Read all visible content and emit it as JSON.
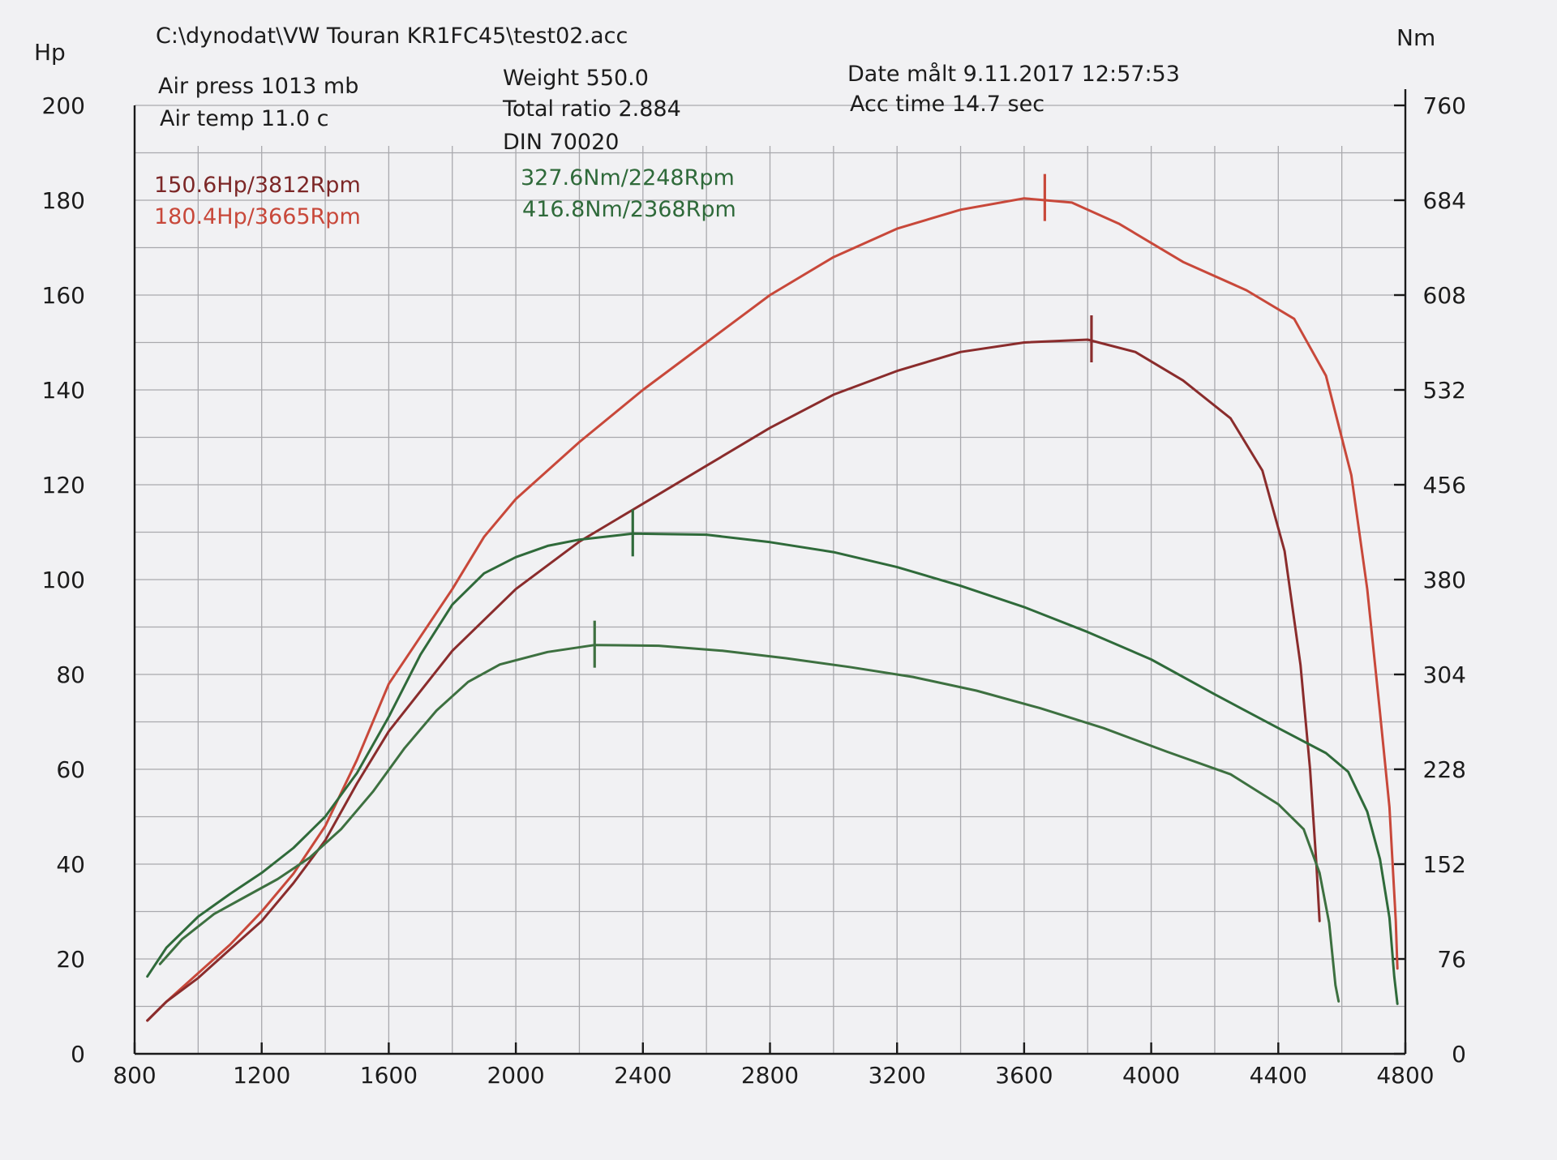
{
  "header": {
    "file_path": "C:\\dynodat\\VW Touran KR1FC45\\test02.acc",
    "air_press": "Air press  1013 mb",
    "air_temp": "Air temp   11.0 c",
    "weight": "Weight    550.0",
    "total_ratio": "Total ratio 2.884",
    "din": "DIN 70020",
    "date": "Date målt 9.11.2017 12:57:53",
    "acc_time": "Acc time   14.7 sec"
  },
  "axis_units": {
    "left": "Hp",
    "right": "Nm"
  },
  "colors": {
    "power_tuned": "#c8483a",
    "power_stock": "#8a2c2c",
    "torque_tuned": "#2f6a3a",
    "torque_stock": "#3d7040",
    "grid": "#a9a9ad"
  },
  "chart_data": {
    "type": "line",
    "x_label_unit": "Rpm",
    "xlim": [
      800,
      4800
    ],
    "x_ticks": [
      "800",
      "1200",
      "1600",
      "2000",
      "2400",
      "2800",
      "3200",
      "3600",
      "4000",
      "4400",
      "4800"
    ],
    "ylim_left": [
      0,
      200
    ],
    "y_ticks_left": [
      "0",
      "20",
      "40",
      "60",
      "80",
      "100",
      "120",
      "140",
      "160",
      "180",
      "200"
    ],
    "ylim_right": [
      0,
      760
    ],
    "y_ticks_right": [
      "0",
      "76",
      "152",
      "228",
      "304",
      "380",
      "456",
      "532",
      "608",
      "684",
      "760"
    ],
    "annotations": {
      "stock_power": "150.6Hp/3812Rpm",
      "tuned_power": "180.4Hp/3665Rpm",
      "stock_torque": "327.6Nm/2248Rpm",
      "tuned_torque": "416.8Nm/2368Rpm"
    },
    "series": [
      {
        "axis": "left",
        "color": "#c8483a",
        "peak_x": 3665,
        "points": [
          [
            840,
            7
          ],
          [
            900,
            11
          ],
          [
            1000,
            17
          ],
          [
            1100,
            23
          ],
          [
            1200,
            30
          ],
          [
            1300,
            38
          ],
          [
            1400,
            48
          ],
          [
            1500,
            62
          ],
          [
            1600,
            78
          ],
          [
            1700,
            88
          ],
          [
            1800,
            98
          ],
          [
            1900,
            109
          ],
          [
            2000,
            117
          ],
          [
            2200,
            129
          ],
          [
            2400,
            140
          ],
          [
            2600,
            150
          ],
          [
            2800,
            160
          ],
          [
            3000,
            168
          ],
          [
            3200,
            174
          ],
          [
            3400,
            178
          ],
          [
            3600,
            180.4
          ],
          [
            3750,
            179.5
          ],
          [
            3900,
            175
          ],
          [
            4100,
            167
          ],
          [
            4300,
            161
          ],
          [
            4450,
            155
          ],
          [
            4550,
            143
          ],
          [
            4630,
            122
          ],
          [
            4680,
            98
          ],
          [
            4720,
            72
          ],
          [
            4750,
            52
          ],
          [
            4770,
            28
          ],
          [
            4775,
            18
          ]
        ]
      },
      {
        "axis": "left",
        "color": "#8a2c2c",
        "peak_x": 3812,
        "points": [
          [
            840,
            7
          ],
          [
            900,
            11
          ],
          [
            1000,
            16
          ],
          [
            1100,
            22
          ],
          [
            1200,
            28
          ],
          [
            1300,
            36
          ],
          [
            1400,
            45
          ],
          [
            1500,
            57
          ],
          [
            1600,
            68
          ],
          [
            1800,
            85
          ],
          [
            2000,
            98
          ],
          [
            2200,
            108
          ],
          [
            2400,
            116
          ],
          [
            2600,
            124
          ],
          [
            2800,
            132
          ],
          [
            3000,
            139
          ],
          [
            3200,
            144
          ],
          [
            3400,
            148
          ],
          [
            3600,
            150
          ],
          [
            3800,
            150.6
          ],
          [
            3950,
            148
          ],
          [
            4100,
            142
          ],
          [
            4250,
            134
          ],
          [
            4350,
            123
          ],
          [
            4420,
            106
          ],
          [
            4470,
            82
          ],
          [
            4500,
            60
          ],
          [
            4520,
            40
          ],
          [
            4530,
            28
          ]
        ]
      },
      {
        "axis": "right",
        "color": "#2f6a3a",
        "peak_x": 2368,
        "points": [
          [
            840,
            62
          ],
          [
            900,
            85
          ],
          [
            1000,
            110
          ],
          [
            1100,
            128
          ],
          [
            1200,
            145
          ],
          [
            1300,
            165
          ],
          [
            1400,
            190
          ],
          [
            1500,
            225
          ],
          [
            1600,
            270
          ],
          [
            1700,
            320
          ],
          [
            1800,
            360
          ],
          [
            1900,
            385
          ],
          [
            2000,
            398
          ],
          [
            2100,
            407
          ],
          [
            2200,
            412
          ],
          [
            2368,
            416.8
          ],
          [
            2600,
            416
          ],
          [
            2800,
            410
          ],
          [
            3000,
            402
          ],
          [
            3200,
            390
          ],
          [
            3400,
            375
          ],
          [
            3600,
            358
          ],
          [
            3800,
            338
          ],
          [
            4000,
            316
          ],
          [
            4200,
            288
          ],
          [
            4400,
            261
          ],
          [
            4550,
            241
          ],
          [
            4620,
            226
          ],
          [
            4680,
            194
          ],
          [
            4720,
            156
          ],
          [
            4750,
            109
          ],
          [
            4765,
            62
          ],
          [
            4775,
            40
          ]
        ]
      },
      {
        "axis": "right",
        "color": "#3d7040",
        "peak_x": 2248,
        "points": [
          [
            880,
            72
          ],
          [
            950,
            92
          ],
          [
            1050,
            112
          ],
          [
            1150,
            126
          ],
          [
            1250,
            140
          ],
          [
            1350,
            157
          ],
          [
            1450,
            180
          ],
          [
            1550,
            210
          ],
          [
            1650,
            245
          ],
          [
            1750,
            275
          ],
          [
            1850,
            298
          ],
          [
            1950,
            312
          ],
          [
            2100,
            322
          ],
          [
            2248,
            327.6
          ],
          [
            2450,
            327
          ],
          [
            2650,
            323
          ],
          [
            2850,
            317
          ],
          [
            3050,
            310
          ],
          [
            3250,
            302
          ],
          [
            3450,
            291
          ],
          [
            3650,
            277
          ],
          [
            3850,
            261
          ],
          [
            4050,
            242
          ],
          [
            4250,
            224
          ],
          [
            4400,
            200
          ],
          [
            4480,
            180
          ],
          [
            4530,
            145
          ],
          [
            4560,
            105
          ],
          [
            4580,
            55
          ],
          [
            4590,
            42
          ]
        ]
      }
    ]
  }
}
